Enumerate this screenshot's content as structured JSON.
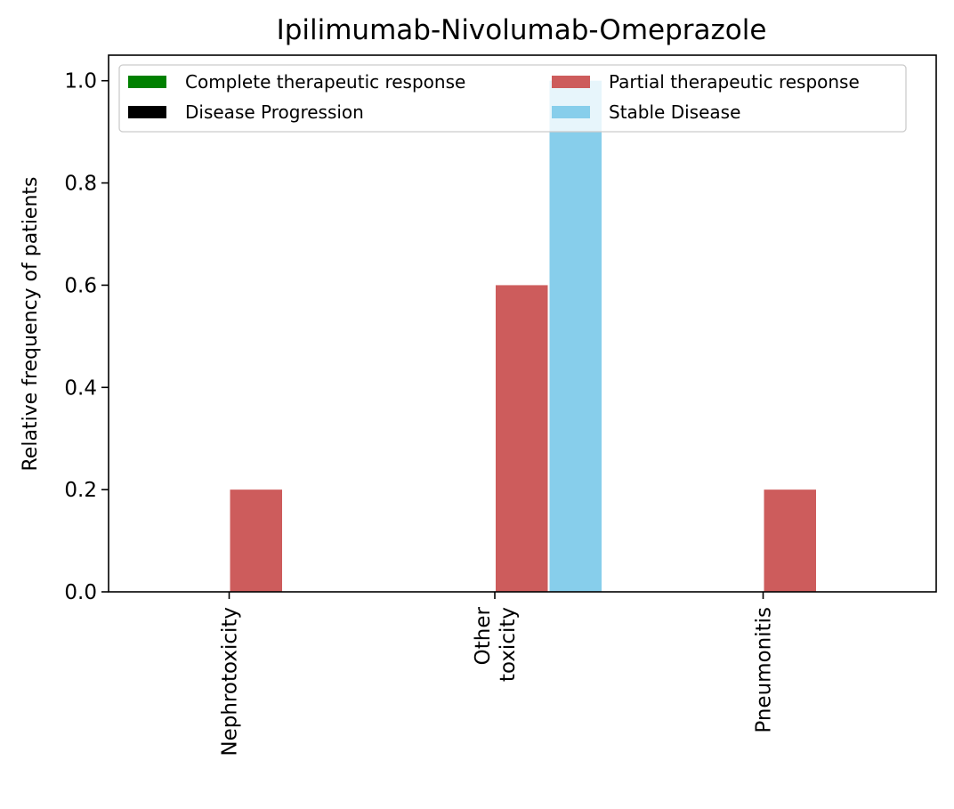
{
  "chart_data": {
    "type": "bar",
    "title": "Ipilimumab-Nivolumab-Omeprazole",
    "xlabel": "",
    "ylabel": "Relative frequency of patients",
    "ylim": [
      0,
      1.05
    ],
    "yticks": [
      "0.0",
      "0.2",
      "0.4",
      "0.6",
      "0.8",
      "1.0"
    ],
    "categories": [
      "Nephrotoxicity",
      "Other\ntoxicity",
      "Pneumonitis"
    ],
    "series": [
      {
        "name": "Complete therapeutic response",
        "color": "#008000",
        "values": [
          0,
          0,
          0
        ]
      },
      {
        "name": "Disease Progression",
        "color": "#000000",
        "values": [
          0,
          0,
          0
        ]
      },
      {
        "name": "Partial therapeutic response",
        "color": "#cd5c5c",
        "values": [
          0.2,
          0.6,
          0.2
        ]
      },
      {
        "name": "Stable Disease",
        "color": "#87ceeb",
        "values": [
          0,
          1.0,
          0
        ]
      }
    ],
    "legend": {
      "location": "top",
      "columns": 2
    },
    "grid": false
  }
}
